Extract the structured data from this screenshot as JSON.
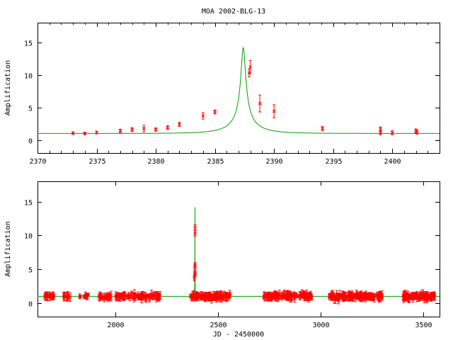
{
  "title": "MOA 2002-BLG-13",
  "chart_data": [
    {
      "type": "scatter",
      "title": "MOA 2002-BLG-13",
      "xlabel": "",
      "ylabel": "Amplification",
      "xlim": [
        2370,
        2404
      ],
      "ylim": [
        -2,
        18
      ],
      "xticks": [
        2370,
        2375,
        2380,
        2385,
        2390,
        2395,
        2400
      ],
      "yticks": [
        0,
        5,
        10,
        15
      ],
      "grid": false,
      "colors": {
        "data": "#ff0000",
        "model": "#00a000"
      },
      "model": {
        "type": "point-lens",
        "t0": 2387.4,
        "u0": 0.0706,
        "tE": 2.8,
        "peak": 14.2
      },
      "points": [
        {
          "x": 2373.0,
          "y": 1.05,
          "err": 0.2
        },
        {
          "x": 2374.0,
          "y": 1.0,
          "err": 0.2
        },
        {
          "x": 2375.0,
          "y": 1.15,
          "err": 0.2
        },
        {
          "x": 2377.0,
          "y": 1.4,
          "err": 0.25
        },
        {
          "x": 2378.0,
          "y": 1.6,
          "err": 0.3
        },
        {
          "x": 2379.0,
          "y": 1.75,
          "err": 0.5
        },
        {
          "x": 2380.0,
          "y": 1.6,
          "err": 0.25
        },
        {
          "x": 2381.0,
          "y": 1.9,
          "err": 0.3
        },
        {
          "x": 2382.0,
          "y": 2.4,
          "err": 0.3
        },
        {
          "x": 2384.0,
          "y": 3.7,
          "err": 0.5
        },
        {
          "x": 2385.0,
          "y": 4.3,
          "err": 0.3
        },
        {
          "x": 2387.9,
          "y": 10.3,
          "err": 0.6
        },
        {
          "x": 2388.0,
          "y": 11.2,
          "err": 1.0
        },
        {
          "x": 2388.8,
          "y": 5.6,
          "err": 1.3
        },
        {
          "x": 2390.0,
          "y": 4.4,
          "err": 1.0
        },
        {
          "x": 2394.1,
          "y": 1.75,
          "err": 0.3
        },
        {
          "x": 2399.0,
          "y": 1.1,
          "err": 0.3
        },
        {
          "x": 2399.0,
          "y": 1.7,
          "err": 0.3
        },
        {
          "x": 2400.0,
          "y": 1.1,
          "err": 0.3
        },
        {
          "x": 2402.0,
          "y": 1.4,
          "err": 0.3
        },
        {
          "x": 2402.1,
          "y": 1.2,
          "err": 0.3
        }
      ]
    },
    {
      "type": "scatter",
      "title": "",
      "xlabel": "JD - 2450000",
      "ylabel": "Amplification",
      "xlim": [
        1620,
        3580
      ],
      "ylim": [
        -2,
        18
      ],
      "xticks": [
        2000,
        2500,
        3000,
        3500
      ],
      "yticks": [
        0,
        5,
        10,
        15
      ],
      "grid": false,
      "colors": {
        "data": "#ff0000",
        "model": "#00a000"
      },
      "baseline": 1.0,
      "seasons": [
        {
          "start": 1650,
          "end": 1720,
          "count": 22,
          "spread": 0.3
        },
        {
          "start": 1740,
          "end": 1780,
          "count": 12,
          "spread": 0.3
        },
        {
          "start": 1820,
          "end": 1870,
          "count": 10,
          "spread": 0.3
        },
        {
          "start": 1920,
          "end": 1980,
          "count": 20,
          "spread": 0.4
        },
        {
          "start": 2000,
          "end": 2220,
          "count": 90,
          "spread": 0.5
        },
        {
          "start": 2365,
          "end": 2560,
          "count": 120,
          "spread": 0.5
        },
        {
          "start": 2720,
          "end": 2960,
          "count": 120,
          "spread": 0.55
        },
        {
          "start": 3040,
          "end": 3300,
          "count": 130,
          "spread": 0.6
        },
        {
          "start": 3400,
          "end": 3560,
          "count": 100,
          "spread": 0.55
        }
      ],
      "event_points": [
        {
          "x": 2384.0,
          "y": 3.7
        },
        {
          "x": 2385.0,
          "y": 4.3
        },
        {
          "x": 2386.0,
          "y": 5.4
        },
        {
          "x": 2387.9,
          "y": 10.3
        },
        {
          "x": 2388.0,
          "y": 11.2
        },
        {
          "x": 2388.8,
          "y": 5.6
        },
        {
          "x": 2390.0,
          "y": 4.4
        }
      ]
    }
  ]
}
